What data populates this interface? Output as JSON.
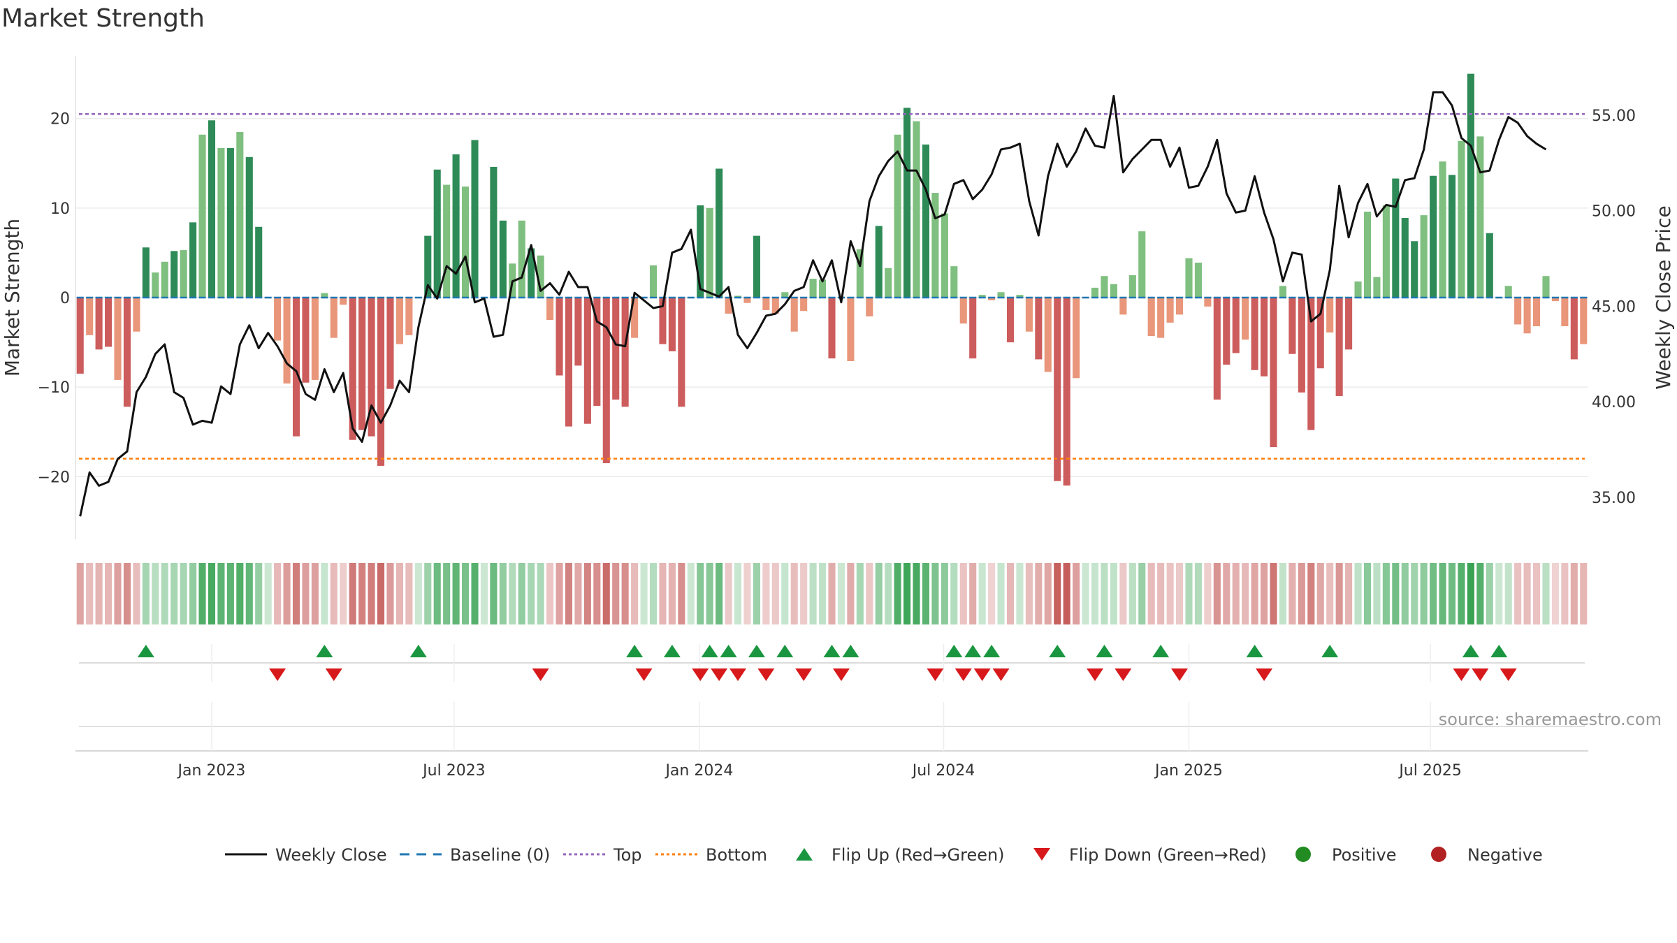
{
  "title": "Market Strength",
  "source": "source: sharemaestro.com",
  "chart_data": {
    "type": "bar",
    "title": "Market Strength",
    "ylabel": "Market Strength",
    "y2label": "Weekly Close Price",
    "ylim": [
      -27,
      27
    ],
    "y2lim": [
      32.8,
      58.1
    ],
    "yticks": [
      -20,
      -10,
      0,
      10,
      20
    ],
    "ytick_labels": [
      "−20",
      "−10",
      "0",
      "10",
      "20"
    ],
    "y2ticks": [
      35,
      40,
      45,
      50,
      55
    ],
    "y2tick_labels": [
      "35.00",
      "40.00",
      "45.00",
      "50.00",
      "55.00"
    ],
    "xtick_labels": [
      "Jan 2023",
      "Jul 2023",
      "Jan 2024",
      "Jul 2024",
      "Jan 2025",
      "Jul 2025"
    ],
    "xtick_weeks": [
      14.0,
      39.8,
      65.9,
      91.9,
      118.0,
      143.7
    ],
    "top_line": 20.5,
    "bottom_line": -18,
    "colors": {
      "dark_green": "#2e8b57",
      "light_green": "#7fbf7f",
      "dark_red": "#cd5c5c",
      "light_red": "#e9967a",
      "price": "#111111",
      "baseline": "#1f77b4",
      "top": "#9467bd",
      "bottom": "#ff7f0e",
      "flip_up": "#1a9641",
      "flip_down": "#d7191c",
      "positive": "#228b22",
      "negative": "#b22222"
    },
    "strength": [
      -8.5,
      -4.2,
      -5.8,
      -5.5,
      -9.2,
      -12.2,
      -3.8,
      5.6,
      2.8,
      4.0,
      5.2,
      5.3,
      8.4,
      18.2,
      19.8,
      16.7,
      16.7,
      18.5,
      15.7,
      7.9,
      0,
      -4.8,
      -9.6,
      -15.5,
      -9.5,
      -9.2,
      0.5,
      -4.5,
      -0.8,
      -15.9,
      -14.8,
      -15.5,
      -18.8,
      -10.2,
      -5.2,
      -4.2,
      0,
      6.9,
      14.3,
      12.6,
      16.0,
      12.4,
      17.6,
      0,
      14.6,
      8.6,
      3.8,
      8.6,
      5.5,
      4.7,
      -2.5,
      -8.7,
      -14.4,
      -7.6,
      -14.1,
      -12.1,
      -18.5,
      -11.4,
      -12.2,
      -4.5,
      0,
      3.6,
      -5.2,
      -6.0,
      -12.2,
      0,
      10.3,
      10.0,
      14.4,
      -1.8,
      0.2,
      -0.6,
      6.9,
      -1.4,
      -1.8,
      0.6,
      -3.8,
      -1.5,
      2.1,
      2.0,
      -6.8,
      0,
      -7.1,
      5.4,
      -2.1,
      8.0,
      3.3,
      18.2,
      21.2,
      19.7,
      17.1,
      11.7,
      9.4,
      3.5,
      -2.9,
      -6.8,
      0.3,
      -0.3,
      0.6,
      -5.0,
      0.3,
      -3.8,
      -6.9,
      -8.3,
      -20.5,
      -21.0,
      -9.0,
      0,
      1.1,
      2.4,
      1.5,
      -1.9,
      2.5,
      7.4,
      -4.3,
      -4.5,
      -2.8,
      -1.9,
      4.4,
      3.9,
      -1.0,
      -11.4,
      -7.5,
      -6.2,
      -4.7,
      -8.1,
      -8.8,
      -16.7,
      1.3,
      -6.3,
      -10.6,
      -14.8,
      -7.9,
      -3.9,
      -11.0,
      -5.8,
      1.8,
      9.6,
      2.3,
      10.3,
      13.3,
      8.9,
      6.3,
      9.2,
      13.6,
      15.2,
      13.7,
      17.5,
      25.0,
      18.0,
      7.2,
      0,
      1.3,
      -3.0,
      -4.0,
      -3.2,
      2.4,
      -0.4,
      -3.2,
      -6.9,
      -5.2
    ],
    "price": [
      34.0,
      36.3,
      35.6,
      35.8,
      37.0,
      37.4,
      40.5,
      41.3,
      42.5,
      43.0,
      40.5,
      40.2,
      38.8,
      39.0,
      38.9,
      40.8,
      40.4,
      43.0,
      44.0,
      42.8,
      43.6,
      42.9,
      42.0,
      41.6,
      40.4,
      40.1,
      41.7,
      40.5,
      41.5,
      38.6,
      37.9,
      39.8,
      38.9,
      39.8,
      41.1,
      40.5,
      43.9,
      46.1,
      45.4,
      47.1,
      46.7,
      47.6,
      45.2,
      45.4,
      43.4,
      43.5,
      46.3,
      46.5,
      48.2,
      45.8,
      46.2,
      45.6,
      46.8,
      46.0,
      46.0,
      44.2,
      43.9,
      43.0,
      42.9,
      45.7,
      45.3,
      44.9,
      45.0,
      47.8,
      48.0,
      49.0,
      45.9,
      45.7,
      45.5,
      46.0,
      43.5,
      42.8,
      43.6,
      44.5,
      44.6,
      45.1,
      45.8,
      46.0,
      47.4,
      46.3,
      47.4,
      45.2,
      48.4,
      47.1,
      50.5,
      51.8,
      52.6,
      53.1,
      52.1,
      52.1,
      51.1,
      49.6,
      49.8,
      51.4,
      51.6,
      50.6,
      51.1,
      51.9,
      53.2,
      53.3,
      53.5,
      50.5,
      48.7,
      51.8,
      53.5,
      52.3,
      53.1,
      54.3,
      53.4,
      53.3,
      56.0,
      52.0,
      52.7,
      53.2,
      53.7,
      53.7,
      52.3,
      53.3,
      51.2,
      51.3,
      52.3,
      53.7,
      50.9,
      49.9,
      50.0,
      51.8,
      49.9,
      48.5,
      46.3,
      47.8,
      47.7,
      44.2,
      44.6,
      46.9,
      51.3,
      48.6,
      50.4,
      51.4,
      49.7,
      50.3,
      50.2,
      51.6,
      51.7,
      53.2,
      56.2,
      56.2,
      55.5,
      53.8,
      53.4,
      52.0,
      52.1,
      53.7,
      54.9,
      54.6,
      53.9,
      53.5,
      53.2
    ],
    "flip_up": [
      7,
      26,
      36,
      59,
      63,
      67,
      69,
      72,
      75,
      80,
      82,
      93,
      95,
      97,
      104,
      109,
      115,
      125,
      133,
      148,
      151
    ],
    "flip_down": [
      21,
      27,
      49,
      60,
      66,
      68,
      70,
      73,
      77,
      81,
      91,
      94,
      96,
      98,
      108,
      111,
      117,
      126,
      147,
      149,
      152
    ],
    "legend": [
      "Weekly Close",
      "Baseline (0)",
      "Top",
      "Bottom",
      "Flip Up (Red→Green)",
      "Flip Down (Green→Red)",
      "Positive",
      "Negative"
    ]
  }
}
